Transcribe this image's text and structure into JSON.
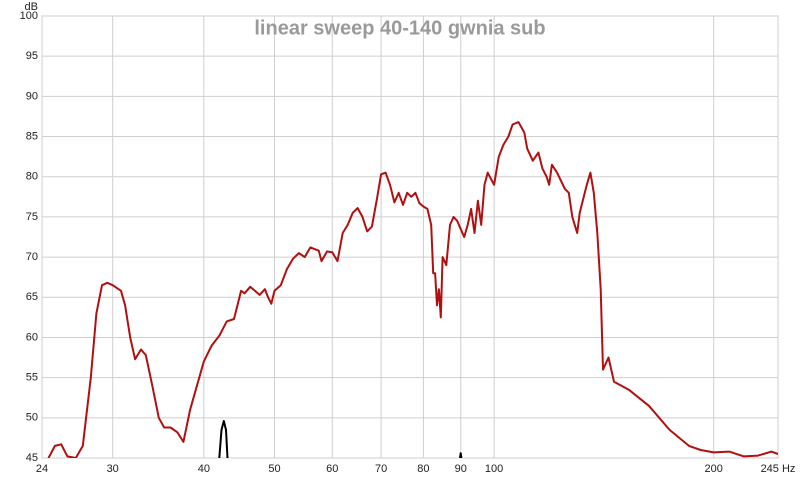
{
  "chart_data": {
    "type": "line",
    "title": "linear sweep 40-140 gwnia sub",
    "y_label": "dB",
    "log_x": true,
    "grid": true,
    "xlim": [
      24,
      245
    ],
    "ylim": [
      45,
      100
    ],
    "xticks": [
      24,
      30,
      40,
      50,
      60,
      70,
      80,
      90,
      100,
      200,
      {
        "value": 245,
        "label": "245 Hz"
      }
    ],
    "yticks": [
      45,
      50,
      55,
      60,
      65,
      70,
      75,
      80,
      85,
      90,
      95,
      100
    ],
    "series": [
      {
        "color": "#b01010",
        "x": [
          24.5,
          25,
          25.5,
          26,
          26.7,
          27.3,
          28,
          28.5,
          29,
          29.5,
          30,
          30.8,
          31.2,
          31.7,
          32.2,
          32.8,
          33.3,
          34,
          34.7,
          35.3,
          36,
          36.8,
          37.5,
          38.3,
          39,
          40,
          41,
          42,
          43,
          44,
          45,
          45.5,
          46.3,
          47,
          47.7,
          48.5,
          49,
          49.5,
          50,
          51,
          52,
          53,
          54,
          55,
          56,
          57.5,
          58,
          59,
          60,
          61,
          62,
          63,
          64,
          65,
          66,
          67,
          68,
          69,
          70,
          71,
          72,
          73,
          74,
          75,
          76,
          77,
          78,
          79,
          80,
          81,
          82,
          82.5,
          83,
          83.5,
          84,
          84.5,
          85,
          86,
          87,
          88,
          89,
          90,
          91,
          92,
          93,
          94,
          95,
          96,
          97,
          98,
          100,
          101.5,
          103,
          104.6,
          106,
          108,
          110,
          111,
          113,
          115,
          116.5,
          118,
          119,
          120,
          122,
          125,
          126.6,
          128,
          130,
          131,
          134,
          135.5,
          137,
          138.5,
          140,
          141,
          143.5,
          146,
          153,
          163,
          174,
          185,
          192,
          200,
          210,
          220,
          230,
          240,
          245
        ],
        "values": [
          45,
          46.5,
          46.7,
          45.2,
          45,
          46.5,
          55,
          63,
          66.5,
          66.8,
          66.5,
          65.8,
          64,
          60,
          57.3,
          58.5,
          57.8,
          54,
          50,
          48.8,
          48.8,
          48.2,
          47,
          51,
          53.5,
          57,
          59,
          60.2,
          62,
          62.3,
          65.8,
          65.5,
          66.3,
          65.8,
          65.3,
          66,
          65,
          64.2,
          65.8,
          66.5,
          68.5,
          69.8,
          70.5,
          70,
          71.2,
          70.8,
          69.5,
          70.7,
          70.6,
          69.5,
          73,
          74,
          75.5,
          76.1,
          75,
          73.2,
          73.8,
          77,
          80.3,
          80.5,
          79,
          76.8,
          78,
          76.5,
          78,
          77.5,
          78,
          76.7,
          76.3,
          76,
          74,
          68,
          68,
          64,
          66,
          62.5,
          70,
          69,
          74,
          75,
          74.5,
          73.5,
          72.5,
          74,
          76,
          73,
          77,
          74,
          79,
          80.5,
          79,
          82.5,
          84,
          85,
          86.5,
          86.8,
          85.5,
          83.5,
          82,
          83,
          81,
          80,
          79,
          81.5,
          80.5,
          78.5,
          78,
          75,
          73,
          75.5,
          79,
          80.5,
          78,
          73,
          66,
          56,
          57.5,
          54.5,
          53.5,
          51.5,
          48.5,
          46.5,
          46,
          45.7,
          45.8,
          45.2,
          45.3,
          45.8,
          45.5
        ]
      },
      {
        "color": "#000000",
        "x": [
          42,
          42.3,
          42.6,
          42.9,
          43.1,
          60,
          89.8,
          90,
          90.2
        ],
        "values": [
          45,
          48.5,
          49.6,
          48.5,
          45,
          null,
          45,
          45.6,
          45
        ]
      }
    ]
  }
}
